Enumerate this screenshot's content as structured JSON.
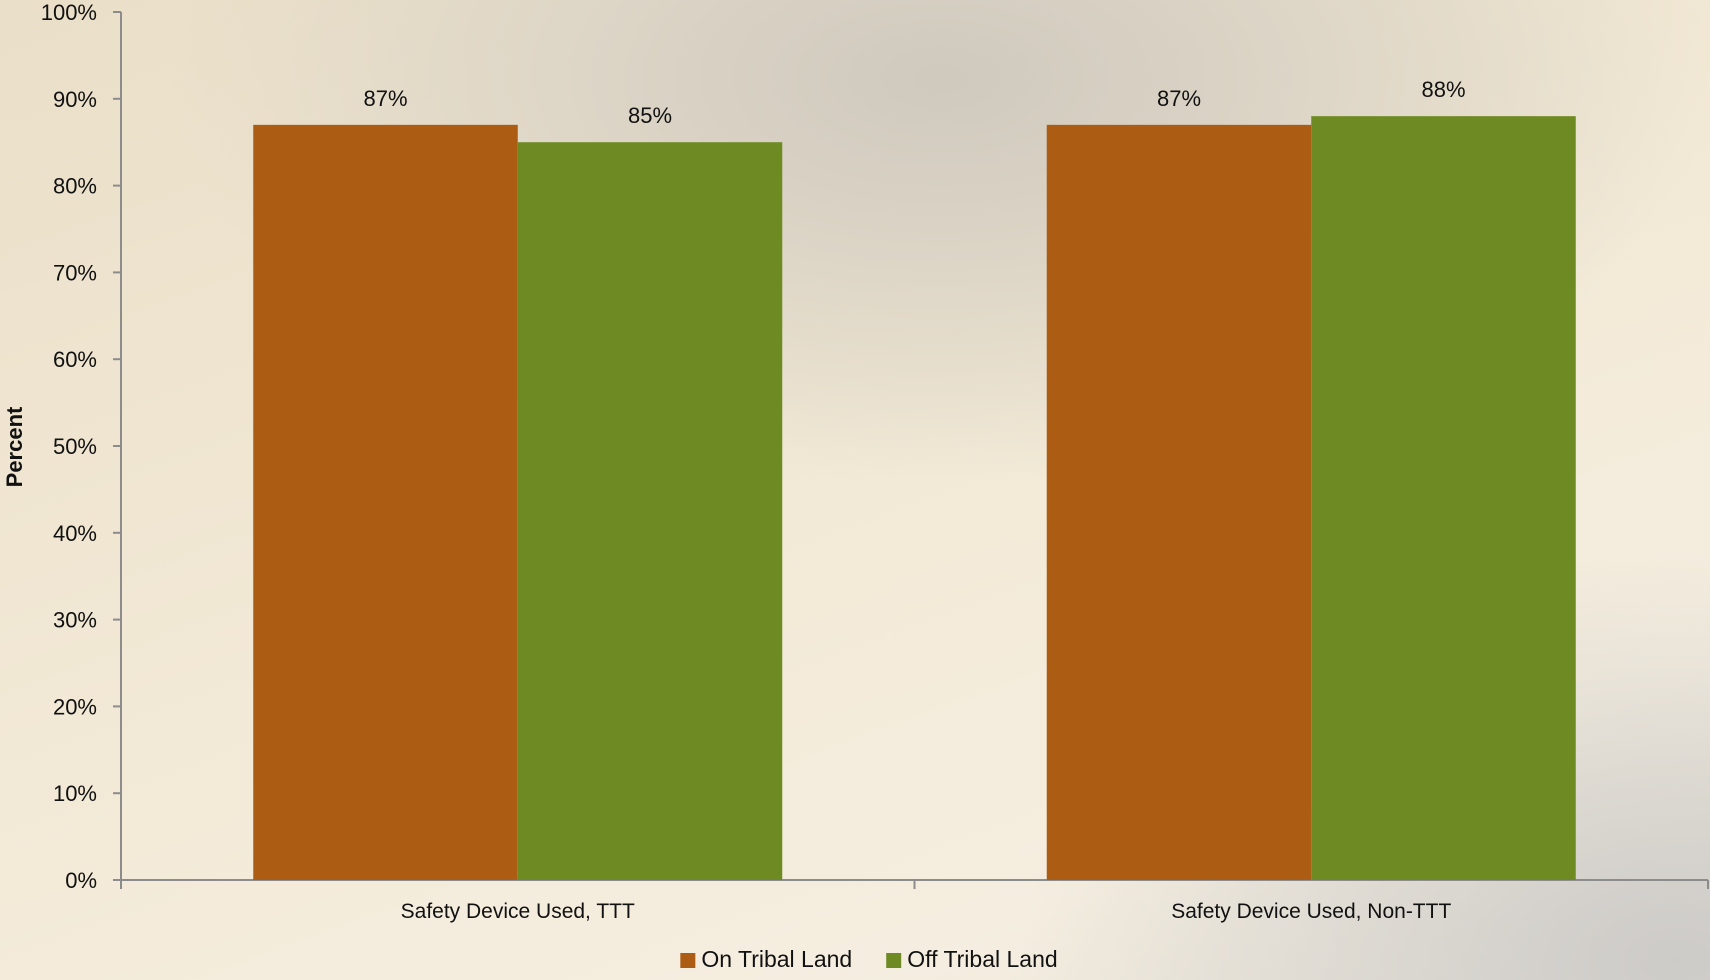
{
  "chart_data": {
    "type": "bar",
    "ylabel": "Percent",
    "ylim": [
      0,
      100
    ],
    "y_tick_step": 10,
    "y_tick_format": "percent",
    "grid": false,
    "legend_position": "bottom",
    "categories": [
      "Safety Device Used, TTT",
      "Safety Device Used, Non-TTT"
    ],
    "series": [
      {
        "name": "On Tribal Land",
        "color": "#ac5c13",
        "values": [
          87,
          87
        ]
      },
      {
        "name": "Off Tribal Land",
        "color": "#6e8b23",
        "values": [
          85,
          88
        ]
      }
    ],
    "data_labels": [
      [
        "87%",
        "87%"
      ],
      [
        "85%",
        "88%"
      ]
    ],
    "axis_color": "#8c8c8c"
  }
}
